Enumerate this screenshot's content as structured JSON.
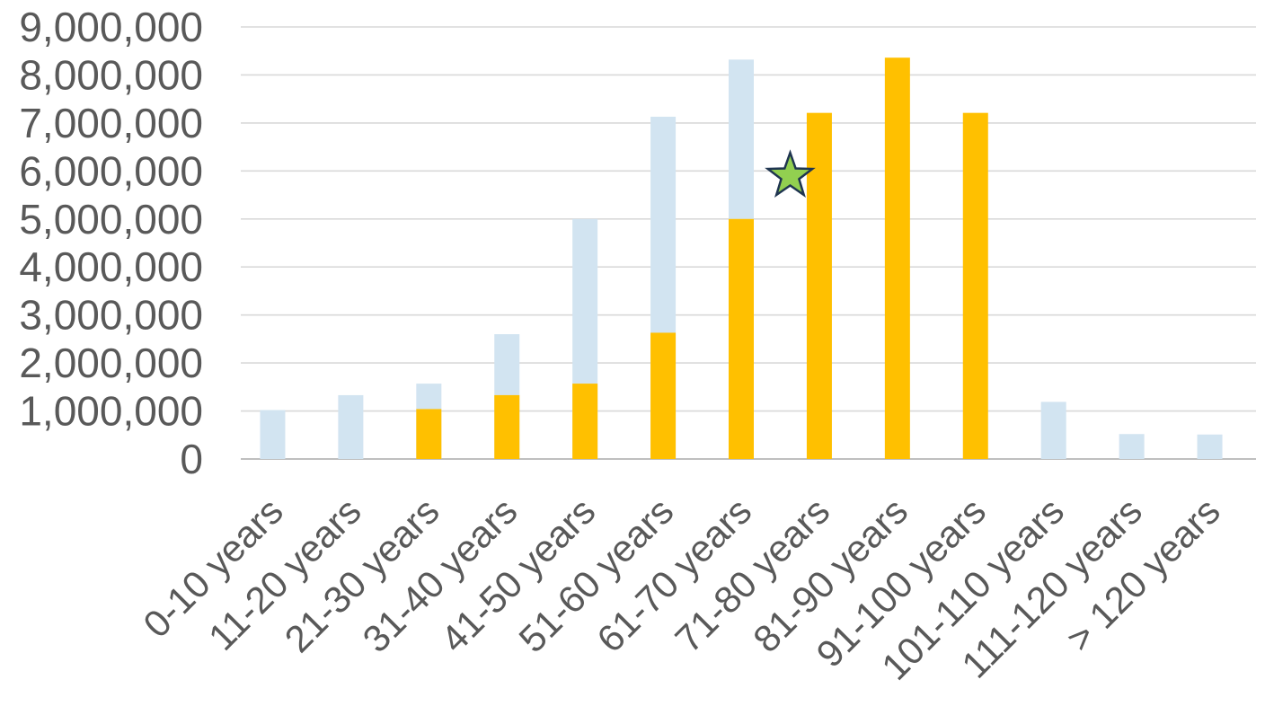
{
  "chart_data": {
    "type": "bar",
    "title": "",
    "xlabel": "",
    "ylabel": "",
    "ylim": [
      0,
      9000000
    ],
    "yticks": [
      0,
      1000000,
      2000000,
      3000000,
      4000000,
      5000000,
      6000000,
      7000000,
      8000000,
      9000000
    ],
    "ytick_labels": [
      "0",
      "1,000,000",
      "2,000,000",
      "3,000,000",
      "4,000,000",
      "5,000,000",
      "6,000,000",
      "7,000,000",
      "8,000,000",
      "9,000,000"
    ],
    "grid": true,
    "legend": "none",
    "categories": [
      "0-10 years",
      "11-20 years",
      "21-30 years",
      "31-40 years",
      "41-50 years",
      "51-60 years",
      "61-70 years",
      "71-80 years",
      "81-90 years",
      "91-100 years",
      "101-110 years",
      "111-120 years",
      "> 120 years"
    ],
    "series": [
      {
        "color": "#d2e4f1",
        "layer": "back",
        "values": [
          1020000,
          1330000,
          1570000,
          2600000,
          5000000,
          7130000,
          8320000,
          null,
          null,
          null,
          1190000,
          520000,
          510000
        ]
      },
      {
        "color": "#ffc000",
        "layer": "front",
        "values": [
          null,
          null,
          1040000,
          1330000,
          1570000,
          2630000,
          5000000,
          7210000,
          8360000,
          7210000,
          null,
          null,
          null
        ]
      }
    ],
    "marker": {
      "shape": "star",
      "icon": "star-icon",
      "fill": "#92d050",
      "stroke": "#1f3550",
      "x_between": [
        "61-70 years",
        "71-80 years"
      ],
      "y": 5950000
    }
  }
}
